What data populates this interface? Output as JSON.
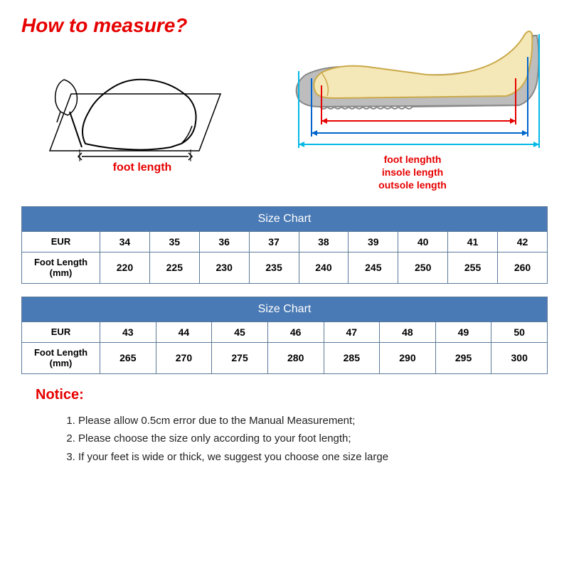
{
  "title": "How to measure?",
  "left_diagram": {
    "label": "foot length",
    "colors": {
      "stroke": "#000000",
      "paper": "#ffffff"
    }
  },
  "right_diagram": {
    "labels": [
      "foot lenghth",
      "insole length",
      "outsole length"
    ],
    "colors": {
      "foot_fill": "#f5e8b8",
      "sole_fill": "#bdbdbd",
      "arrow_inner": "#e60000",
      "arrow_mid": "#0066cc",
      "arrow_outer": "#00b8e6"
    }
  },
  "table1": {
    "title": "Size Chart",
    "rows": [
      {
        "label": "EUR",
        "cells": [
          "34",
          "35",
          "36",
          "37",
          "38",
          "39",
          "40",
          "41",
          "42"
        ]
      },
      {
        "label": "Foot Length (mm)",
        "cells": [
          "220",
          "225",
          "230",
          "235",
          "240",
          "245",
          "250",
          "255",
          "260"
        ]
      }
    ]
  },
  "table2": {
    "title": "Size Chart",
    "rows": [
      {
        "label": "EUR",
        "cells": [
          "43",
          "44",
          "45",
          "46",
          "47",
          "48",
          "49",
          "50"
        ]
      },
      {
        "label": "Foot Length (mm)",
        "cells": [
          "265",
          "270",
          "275",
          "280",
          "285",
          "290",
          "295",
          "300"
        ]
      }
    ]
  },
  "notice": {
    "title": "Notice:",
    "items": [
      "Please allow 0.5cm error due to the Manual Measurement;",
      "Please choose the size only according to your foot length;",
      "If your feet is wide or thick, we suggest you choose one size large"
    ]
  },
  "style": {
    "title_color": "#e60000",
    "table_header_bg": "#4a7ab5",
    "table_header_fg": "#ffffff",
    "border_color": "#5b7a9a",
    "notice_color": "#e60000",
    "background": "#ffffff"
  }
}
